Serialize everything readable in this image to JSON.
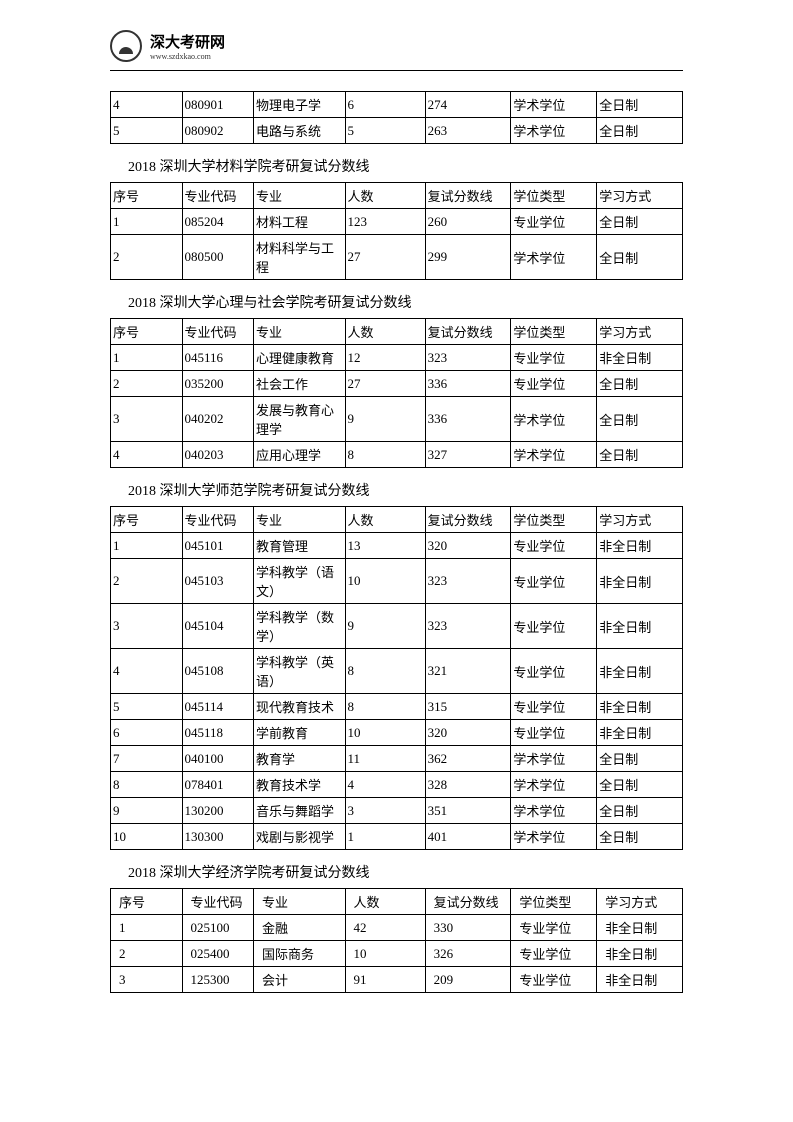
{
  "header": {
    "logo_title": "深大考研网",
    "logo_sub": "www.szdxkao.com"
  },
  "table0": {
    "rows": [
      [
        "4",
        "080901",
        "物理电子学",
        "6",
        "274",
        "学术学位",
        "全日制"
      ],
      [
        "5",
        "080902",
        "电路与系统",
        "5",
        "263",
        "学术学位",
        "全日制"
      ]
    ]
  },
  "section1": {
    "title": "2018 深圳大学材料学院考研复试分数线",
    "headers": [
      "序号",
      "专业代码",
      "专业",
      "人数",
      "复试分数线",
      "学位类型",
      "学习方式"
    ],
    "rows": [
      [
        "1",
        "085204",
        "材料工程",
        "123",
        "260",
        "专业学位",
        "全日制"
      ],
      [
        "2",
        "080500",
        "材料科学与工程",
        "27",
        "299",
        "学术学位",
        "全日制"
      ]
    ]
  },
  "section2": {
    "title": "2018 深圳大学心理与社会学院考研复试分数线",
    "headers": [
      "序号",
      "专业代码",
      "专业",
      "人数",
      "复试分数线",
      "学位类型",
      "学习方式"
    ],
    "rows": [
      [
        "1",
        "045116",
        "心理健康教育",
        "12",
        "323",
        "专业学位",
        "非全日制"
      ],
      [
        "2",
        "035200",
        "社会工作",
        "27",
        "336",
        "专业学位",
        "全日制"
      ],
      [
        "3",
        "040202",
        "发展与教育心理学",
        "9",
        "336",
        "学术学位",
        "全日制"
      ],
      [
        "4",
        "040203",
        "应用心理学",
        "8",
        "327",
        "学术学位",
        "全日制"
      ]
    ]
  },
  "section3": {
    "title": "2018 深圳大学师范学院考研复试分数线",
    "headers": [
      "序号",
      "专业代码",
      "专业",
      "人数",
      "复试分数线",
      "学位类型",
      "学习方式"
    ],
    "rows": [
      [
        "1",
        "045101",
        "教育管理",
        "13",
        "320",
        "专业学位",
        "非全日制"
      ],
      [
        "2",
        "045103",
        "学科教学（语文）",
        "10",
        "323",
        "专业学位",
        "非全日制"
      ],
      [
        "3",
        "045104",
        "学科教学（数学）",
        "9",
        "323",
        "专业学位",
        "非全日制"
      ],
      [
        "4",
        "045108",
        "学科教学（英语）",
        "8",
        "321",
        "专业学位",
        "非全日制"
      ],
      [
        "5",
        "045114",
        "现代教育技术",
        "8",
        "315",
        "专业学位",
        "非全日制"
      ],
      [
        "6",
        "045118",
        "学前教育",
        "10",
        "320",
        "专业学位",
        "非全日制"
      ],
      [
        "7",
        "040100",
        "教育学",
        "11",
        "362",
        "学术学位",
        "全日制"
      ],
      [
        "8",
        "078401",
        "教育技术学",
        "4",
        "328",
        "学术学位",
        "全日制"
      ],
      [
        "9",
        "130200",
        "音乐与舞蹈学",
        "3",
        "351",
        "学术学位",
        "全日制"
      ],
      [
        "10",
        "130300",
        "戏剧与影视学",
        "1",
        "401",
        "学术学位",
        "全日制"
      ]
    ]
  },
  "section4": {
    "title": "2018 深圳大学经济学院考研复试分数线",
    "headers": [
      "序号",
      "专业代码",
      "专业",
      "人数",
      "复试分数线",
      "学位类型",
      "学习方式"
    ],
    "rows": [
      [
        "1",
        "025100",
        "金融",
        "42",
        "330",
        "专业学位",
        "非全日制"
      ],
      [
        "2",
        "025400",
        "国际商务",
        "10",
        "326",
        "专业学位",
        "非全日制"
      ],
      [
        "3",
        "125300",
        "会计",
        "91",
        "209",
        "专业学位",
        "非全日制"
      ]
    ]
  }
}
